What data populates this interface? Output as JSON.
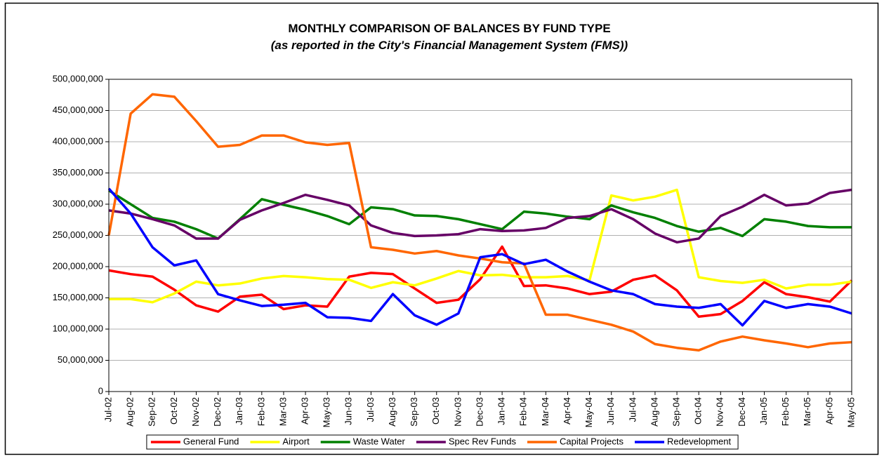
{
  "chart_data": {
    "type": "line",
    "title": "MONTHLY COMPARISON OF BALANCES BY FUND TYPE",
    "subtitle": "(as reported in the City's Financial Management System (FMS))",
    "categories": [
      "Jul-02",
      "Aug-02",
      "Sep-02",
      "Oct-02",
      "Nov-02",
      "Dec-02",
      "Jan-03",
      "Feb-03",
      "Mar-03",
      "Apr-03",
      "May-03",
      "Jun-03",
      "Jul-03",
      "Aug-03",
      "Sep-03",
      "Oct-03",
      "Nov-03",
      "Dec-03",
      "Jan-04",
      "Feb-04",
      "Mar-04",
      "Apr-04",
      "May-04",
      "Jun-04",
      "Jul-04",
      "Aug-04",
      "Sep-04",
      "Oct-04",
      "Nov-04",
      "Dec-04",
      "Jan-05",
      "Feb-05",
      "Mar-05",
      "Apr-05",
      "May-05"
    ],
    "ylim": [
      0,
      500000000
    ],
    "yticks": [
      {
        "value": 0,
        "label": "0"
      },
      {
        "value": 50000000,
        "label": "50,000,000"
      },
      {
        "value": 100000000,
        "label": "100,000,000"
      },
      {
        "value": 150000000,
        "label": "150,000,000"
      },
      {
        "value": 200000000,
        "label": "200,000,000"
      },
      {
        "value": 250000000,
        "label": "250,000,000"
      },
      {
        "value": 300000000,
        "label": "300,000,000"
      },
      {
        "value": 350000000,
        "label": "350,000,000"
      },
      {
        "value": 400000000,
        "label": "400,000,000"
      },
      {
        "value": 450000000,
        "label": "450,000,000"
      },
      {
        "value": 500000000,
        "label": "500,000,000"
      }
    ],
    "grid": true,
    "legend": "bottom",
    "series": [
      {
        "name": "General Fund",
        "color": "#ff0000",
        "values": [
          194000000,
          188000000,
          184000000,
          163000000,
          138000000,
          128000000,
          152000000,
          155000000,
          132000000,
          138000000,
          136000000,
          184000000,
          190000000,
          188000000,
          165000000,
          142000000,
          147000000,
          180000000,
          232000000,
          169000000,
          170000000,
          165000000,
          156000000,
          160000000,
          179000000,
          186000000,
          162000000,
          120000000,
          124000000,
          145000000,
          175000000,
          156000000,
          151000000,
          144000000,
          178000000
        ]
      },
      {
        "name": "Airport",
        "color": "#ffff00",
        "values": [
          148000000,
          148000000,
          143000000,
          157000000,
          176000000,
          170000000,
          173000000,
          181000000,
          185000000,
          183000000,
          180000000,
          179000000,
          166000000,
          175000000,
          170000000,
          181000000,
          193000000,
          186000000,
          187000000,
          183000000,
          183000000,
          185000000,
          178000000,
          314000000,
          306000000,
          312000000,
          323000000,
          183000000,
          177000000,
          174000000,
          179000000,
          165000000,
          171000000,
          171000000,
          176000000
        ]
      },
      {
        "name": "Waste Water",
        "color": "#008000",
        "values": [
          322000000,
          300000000,
          278000000,
          272000000,
          260000000,
          245000000,
          276000000,
          308000000,
          299000000,
          291000000,
          281000000,
          268000000,
          295000000,
          292000000,
          282000000,
          281000000,
          276000000,
          268000000,
          260000000,
          288000000,
          285000000,
          280000000,
          276000000,
          298000000,
          287000000,
          278000000,
          265000000,
          256000000,
          262000000,
          249000000,
          276000000,
          272000000,
          265000000,
          263000000,
          263000000
        ]
      },
      {
        "name": "Spec Rev Funds",
        "color": "#660066",
        "values": [
          290000000,
          285000000,
          276000000,
          266000000,
          245000000,
          245000000,
          275000000,
          290000000,
          302000000,
          315000000,
          307000000,
          298000000,
          266000000,
          254000000,
          249000000,
          250000000,
          252000000,
          260000000,
          257000000,
          258000000,
          262000000,
          278000000,
          281000000,
          292000000,
          276000000,
          253000000,
          239000000,
          245000000,
          281000000,
          296000000,
          315000000,
          298000000,
          301000000,
          318000000,
          323000000
        ]
      },
      {
        "name": "Capital Projects",
        "color": "#ff6600",
        "values": [
          250000000,
          445000000,
          476000000,
          472000000,
          433000000,
          392000000,
          395000000,
          410000000,
          410000000,
          399000000,
          395000000,
          398000000,
          231000000,
          227000000,
          221000000,
          225000000,
          218000000,
          213000000,
          207000000,
          205000000,
          123000000,
          123000000,
          115000000,
          107000000,
          96000000,
          76000000,
          70000000,
          66000000,
          80000000,
          88000000,
          82000000,
          77000000,
          71000000,
          77000000,
          79000000
        ]
      },
      {
        "name": "Redevelopment",
        "color": "#0000ff",
        "values": [
          325000000,
          285000000,
          231000000,
          202000000,
          210000000,
          156000000,
          146000000,
          137000000,
          139000000,
          142000000,
          119000000,
          118000000,
          113000000,
          156000000,
          122000000,
          107000000,
          125000000,
          215000000,
          220000000,
          204000000,
          211000000,
          192000000,
          176000000,
          162000000,
          156000000,
          140000000,
          136000000,
          134000000,
          140000000,
          106000000,
          145000000,
          134000000,
          140000000,
          136000000,
          125000000
        ]
      }
    ]
  }
}
